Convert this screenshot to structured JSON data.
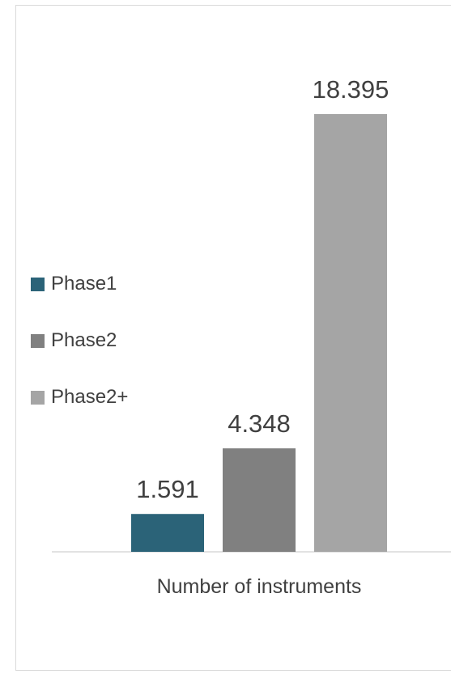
{
  "chart_data": {
    "type": "bar",
    "xlabel": "Number of instruments",
    "categories": [
      "Number of instruments"
    ],
    "series": [
      {
        "name": "Phase1",
        "values": [
          1.591
        ],
        "label": "1.591",
        "color": "#2b6378"
      },
      {
        "name": "Phase2",
        "values": [
          4.348
        ],
        "label": "4.348",
        "color": "#808080"
      },
      {
        "name": "Phase2+",
        "values": [
          18.395
        ],
        "label": "18.395",
        "color": "#a5a5a5"
      }
    ],
    "ylim": [
      0,
      18.395
    ],
    "grid": false,
    "legend_position": "left"
  }
}
